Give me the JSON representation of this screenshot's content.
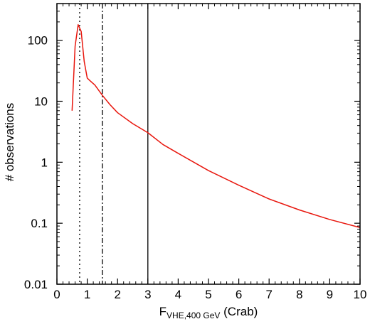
{
  "chart_data": {
    "type": "line",
    "title": "",
    "xlabel": {
      "main": "F",
      "sub": "VHE,400 GeV",
      "unit": " (Crab)"
    },
    "ylabel": "# observations",
    "xlim": [
      0,
      10
    ],
    "ylim": [
      0.01,
      400
    ],
    "y_scale": "log",
    "grid": false,
    "legend": "none",
    "x_ticks": [
      0,
      1,
      2,
      3,
      4,
      5,
      6,
      7,
      8,
      9,
      10
    ],
    "x_tick_labels": [
      "0",
      "1",
      "2",
      "3",
      "4",
      "5",
      "6",
      "7",
      "8",
      "9",
      "10"
    ],
    "y_ticks": [
      0.01,
      0.1,
      1,
      10,
      100
    ],
    "y_tick_labels": [
      "0.01",
      "0.1",
      "1",
      "10",
      "100"
    ],
    "series": [
      {
        "color": "#e8160d",
        "x": [
          0.5,
          0.6,
          0.7,
          0.8,
          0.9,
          1.0,
          1.1,
          1.25,
          1.5,
          1.75,
          2.0,
          2.5,
          3.0,
          3.5,
          4.0,
          5.0,
          6.0,
          7.0,
          8.0,
          9.0,
          10.0
        ],
        "y": [
          7.0,
          80,
          180,
          140,
          45,
          24,
          21.5,
          18.5,
          12.5,
          8.8,
          6.5,
          4.3,
          3.05,
          1.95,
          1.4,
          0.73,
          0.42,
          0.25,
          0.165,
          0.115,
          0.085
        ]
      }
    ],
    "vlines": [
      {
        "x": 0.75,
        "style": "dotted"
      },
      {
        "x": 1.5,
        "style": "dashdot"
      },
      {
        "x": 3.0,
        "style": "solid"
      }
    ]
  }
}
